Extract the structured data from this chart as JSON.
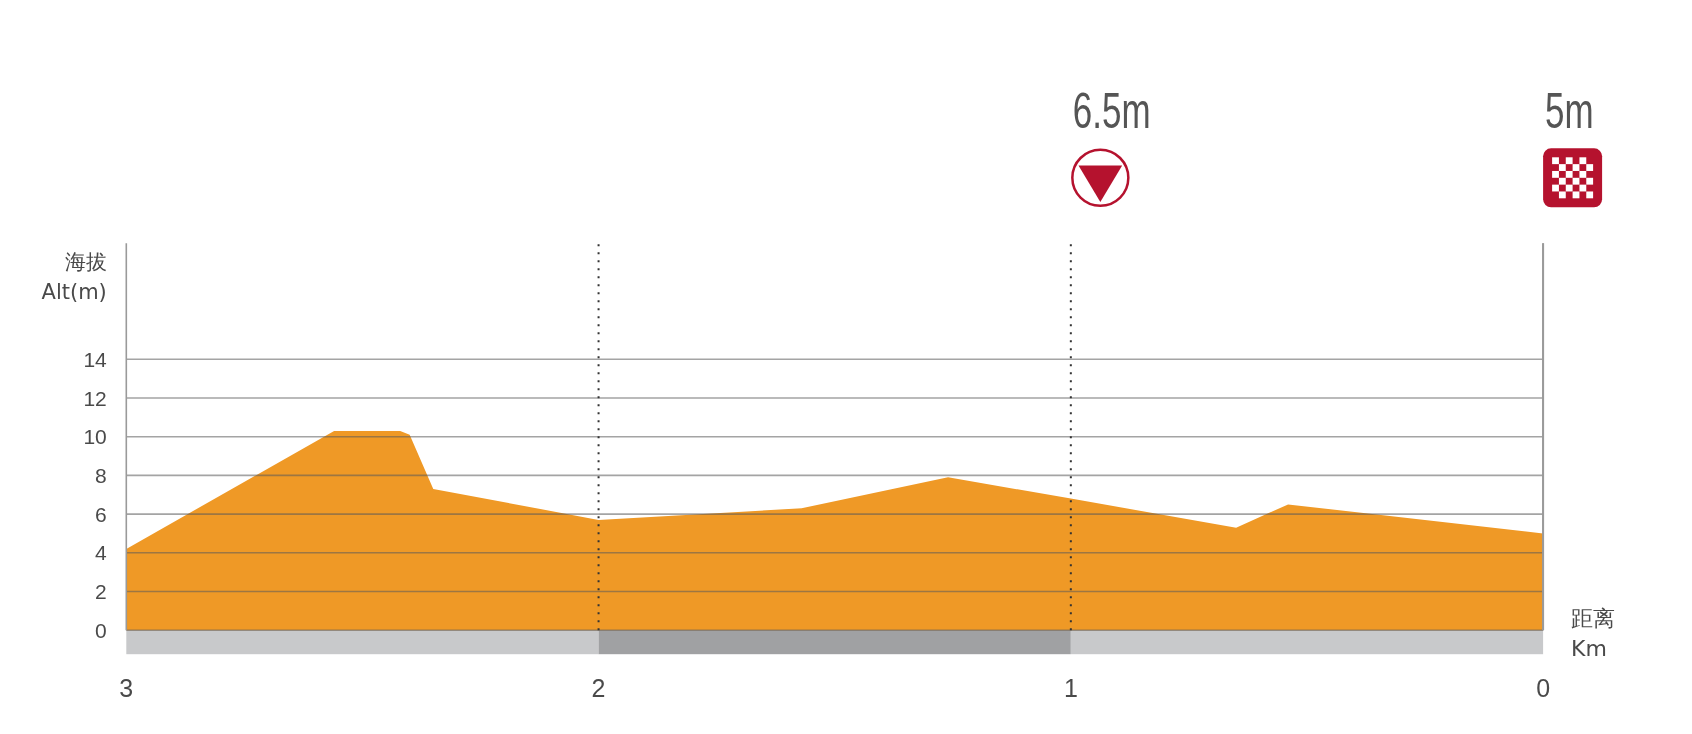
{
  "chart_data": {
    "type": "area",
    "x": [
      3,
      2.56,
      2.42,
      2.4,
      2.35,
      2,
      1.57,
      1.26,
      1,
      0.65,
      0.54,
      0
    ],
    "values": [
      4.2,
      10.3,
      10.3,
      10.1,
      7.3,
      5.7,
      6.3,
      7.9,
      6.8,
      5.3,
      6.5,
      5.0
    ],
    "color": "#ef9926",
    "xlabel": "距离\nKm",
    "ylabel": "海拔\nAlt(m)",
    "xlim": [
      3,
      0
    ],
    "ylim": [
      0,
      20
    ],
    "xticks": [
      3,
      2,
      1,
      0
    ],
    "yticks": [
      0,
      2,
      4,
      6,
      8,
      10,
      12,
      14
    ],
    "grid": "y",
    "ref_lines": [
      {
        "axis": "x",
        "value": 2,
        "line_style": "dotted",
        "color": "#333333"
      },
      {
        "axis": "x",
        "value": 1,
        "line_style": "dotted",
        "color": "#333333",
        "label": "6.5m"
      },
      {
        "axis": "x",
        "value": 0,
        "line_style": "solid",
        "color": "#9a9a9a",
        "label": "5m"
      }
    ]
  }
}
